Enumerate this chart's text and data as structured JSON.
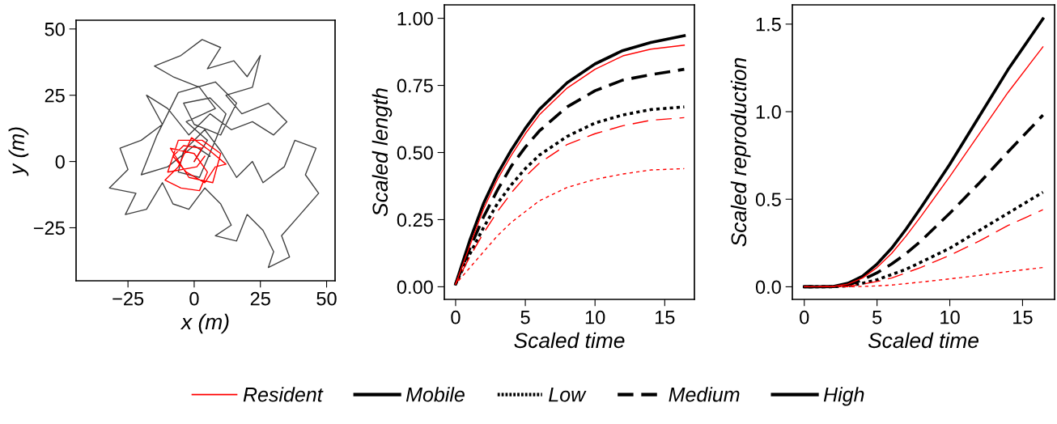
{
  "chart_data": [
    {
      "type": "line",
      "xlabel": "x (m)",
      "ylabel": "y (m)",
      "xlim": [
        -44.6,
        53.2
      ],
      "ylim": [
        -45,
        53.3
      ],
      "xticks": [
        {
          "value": -25,
          "label": "−25"
        },
        0,
        25,
        50
      ],
      "yticks": [
        {
          "value": -25,
          "label": "−25"
        },
        0,
        25,
        50
      ],
      "grid": false,
      "legend": "bottom",
      "line_style": "solid",
      "marker": "none",
      "series": [
        {
          "name": "Mobile",
          "color": "#000000",
          "x": [
            0,
            5,
            -3,
            8,
            2,
            -8,
            -15,
            -5,
            3,
            10,
            5,
            15,
            20,
            25,
            22,
            12,
            18,
            28,
            35,
            30,
            22,
            14,
            6,
            -2,
            -10,
            -18,
            -12,
            -20,
            -28,
            -25,
            -32,
            -22,
            -26,
            -18,
            -12,
            -8,
            -2,
            4,
            10,
            14,
            8,
            16,
            20,
            26,
            30,
            28,
            36,
            33,
            40,
            47,
            42,
            46,
            38,
            34,
            26,
            22,
            16,
            10,
            4,
            -4,
            -6,
            2,
            8,
            12,
            6,
            -4,
            0,
            10,
            16,
            8,
            -6,
            -14,
            -20,
            -10,
            0,
            6
          ],
          "values": [
            0,
            8,
            15,
            20,
            28,
            32,
            36,
            40,
            46,
            43,
            35,
            38,
            32,
            40,
            28,
            25,
            18,
            22,
            15,
            10,
            15,
            12,
            18,
            10,
            20,
            25,
            14,
            8,
            5,
            -3,
            -10,
            -12,
            -20,
            -18,
            -8,
            -16,
            -18,
            -10,
            -16,
            -24,
            -28,
            -30,
            -20,
            -26,
            -34,
            -40,
            -36,
            -28,
            -20,
            -12,
            -5,
            5,
            8,
            -2,
            -8,
            0,
            -6,
            4,
            12,
            4,
            -4,
            -6,
            8,
            18,
            24,
            22,
            14,
            10,
            22,
            30,
            26,
            10,
            -5,
            -2,
            6,
            2
          ]
        },
        {
          "name": "Resident",
          "color": "#ff0000",
          "x": [
            0,
            3,
            -4,
            -8,
            -3,
            4,
            8,
            12,
            6,
            -1,
            -6,
            -11,
            -5,
            2,
            5,
            0,
            -9,
            -2,
            7,
            10,
            3,
            -6,
            -10,
            1,
            4
          ],
          "values": [
            0,
            5,
            6,
            2,
            -4,
            -8,
            -2,
            -1,
            4,
            9,
            -2,
            -7,
            -10,
            -11,
            -4,
            3,
            5,
            -6,
            -8,
            3,
            8,
            8,
            -4,
            -2,
            2
          ]
        }
      ]
    },
    {
      "type": "line",
      "xlabel": "Scaled time",
      "ylabel": "Scaled length",
      "xlim": [
        -0.81,
        17.13
      ],
      "ylim": [
        -0.047,
        1.05
      ],
      "xticks": [
        0,
        5,
        10,
        15
      ],
      "yticks": [
        {
          "value": 0,
          "label": "0.00"
        },
        {
          "value": 0.25,
          "label": "0.25"
        },
        {
          "value": 0.5,
          "label": "0.50"
        },
        {
          "value": 0.75,
          "label": "0.75"
        },
        {
          "value": 1,
          "label": "1.00"
        }
      ],
      "grid": false,
      "legend": "bottom",
      "marker": "none",
      "x": [
        0,
        1,
        2,
        3,
        4,
        5,
        6,
        8,
        10,
        12,
        14,
        16.4
      ],
      "series": [
        {
          "color": "#ff0000",
          "line_style": "solid",
          "values": [
            0.01,
            0.15,
            0.29,
            0.4,
            0.49,
            0.57,
            0.64,
            0.74,
            0.81,
            0.86,
            0.885,
            0.9
          ]
        },
        {
          "color": "#ff0000",
          "line_style": "dashed",
          "values": [
            0.01,
            0.11,
            0.2,
            0.28,
            0.35,
            0.41,
            0.46,
            0.53,
            0.57,
            0.6,
            0.62,
            0.63
          ]
        },
        {
          "color": "#ff0000",
          "line_style": "dotted",
          "values": [
            0.01,
            0.07,
            0.13,
            0.19,
            0.24,
            0.28,
            0.32,
            0.37,
            0.4,
            0.42,
            0.435,
            0.44
          ]
        },
        {
          "name": "Low",
          "color": "#000000",
          "line_style": "dotted",
          "values": [
            0.01,
            0.12,
            0.22,
            0.31,
            0.38,
            0.44,
            0.49,
            0.56,
            0.61,
            0.64,
            0.66,
            0.67
          ]
        },
        {
          "name": "Medium",
          "color": "#000000",
          "line_style": "dashed",
          "values": [
            0.01,
            0.14,
            0.26,
            0.36,
            0.45,
            0.52,
            0.58,
            0.67,
            0.73,
            0.77,
            0.79,
            0.81
          ]
        },
        {
          "name": "High",
          "color": "#000000",
          "line_style": "solid",
          "values": [
            0.01,
            0.17,
            0.31,
            0.42,
            0.51,
            0.59,
            0.66,
            0.76,
            0.83,
            0.88,
            0.91,
            0.935
          ]
        }
      ]
    },
    {
      "type": "line",
      "xlabel": "Scaled time",
      "ylabel": "Scaled reproduction",
      "xlim": [
        -0.82,
        17.2
      ],
      "ylim": [
        -0.072,
        1.61
      ],
      "xticks": [
        0,
        5,
        10,
        15
      ],
      "yticks": [
        {
          "value": 0,
          "label": "0.0"
        },
        {
          "value": 0.5,
          "label": "0.5"
        },
        {
          "value": 1,
          "label": "1.0"
        },
        {
          "value": 1.5,
          "label": "1.5"
        }
      ],
      "grid": false,
      "marker": "none",
      "x": [
        0,
        1,
        2,
        3,
        4,
        5,
        6,
        7,
        8,
        10,
        12,
        14,
        16.4
      ],
      "series": [
        {
          "color": "#ff0000",
          "line_style": "solid",
          "values": [
            0,
            0,
            0.002,
            0.015,
            0.05,
            0.11,
            0.19,
            0.29,
            0.4,
            0.63,
            0.87,
            1.11,
            1.37
          ]
        },
        {
          "color": "#ff0000",
          "line_style": "dashed",
          "values": [
            0,
            0,
            0,
            0.003,
            0.015,
            0.03,
            0.05,
            0.08,
            0.11,
            0.18,
            0.26,
            0.35,
            0.44
          ]
        },
        {
          "color": "#ff0000",
          "line_style": "dotted",
          "values": [
            0,
            0,
            0,
            0,
            0.002,
            0.005,
            0.01,
            0.018,
            0.027,
            0.045,
            0.065,
            0.087,
            0.11
          ]
        },
        {
          "color": "#000000",
          "line_style": "dotted",
          "values": [
            0,
            0,
            0,
            0.005,
            0.02,
            0.04,
            0.07,
            0.1,
            0.14,
            0.22,
            0.32,
            0.42,
            0.54
          ]
        },
        {
          "color": "#000000",
          "line_style": "dashed",
          "values": [
            0,
            0,
            0.001,
            0.01,
            0.04,
            0.08,
            0.13,
            0.19,
            0.26,
            0.42,
            0.59,
            0.77,
            0.98
          ]
        },
        {
          "color": "#000000",
          "line_style": "solid",
          "values": [
            0,
            0,
            0.002,
            0.02,
            0.06,
            0.13,
            0.22,
            0.33,
            0.45,
            0.7,
            0.97,
            1.24,
            1.53
          ]
        }
      ]
    }
  ]
}
